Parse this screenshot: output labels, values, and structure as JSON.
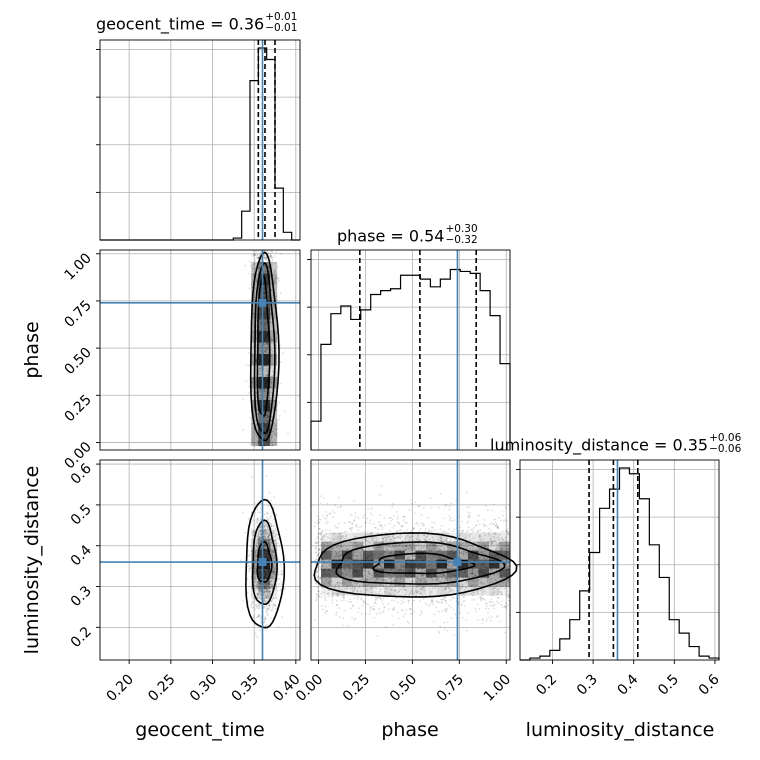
{
  "chart_data": {
    "type": "corner",
    "parameters": [
      "geocent_time",
      "phase",
      "luminosity_distance"
    ],
    "truths": {
      "geocent_time": 0.36,
      "phase": 0.74,
      "luminosity_distance": 0.36
    },
    "titles": [
      {
        "param": "geocent_time",
        "text": "geocent_time = 0.36",
        "plus": "+0.01",
        "minus": "−0.01"
      },
      {
        "param": "phase",
        "text": "phase = 0.54",
        "plus": "+0.30",
        "minus": "−0.32"
      },
      {
        "param": "luminosity_distance",
        "text": "luminosity_distance = 0.35",
        "plus": "+0.06",
        "minus": "−0.06"
      }
    ],
    "ranges": {
      "geocent_time": [
        0.165,
        0.405
      ],
      "phase": [
        -0.04,
        1.02
      ],
      "luminosity_distance": [
        0.12,
        0.61
      ]
    },
    "ticks": {
      "geocent_time": [
        "0.20",
        "0.25",
        "0.30",
        "0.35",
        "0.40"
      ],
      "phase": [
        "0.00",
        "0.25",
        "0.50",
        "0.75",
        "1.00"
      ],
      "luminosity_distance": [
        "0.2",
        "0.3",
        "0.4",
        "0.5",
        "0.6"
      ]
    },
    "axis_labels": {
      "geocent_time": "geocent_time",
      "phase": "phase",
      "luminosity_distance": "luminosity_distance"
    },
    "y_labels": {
      "phase": "phase",
      "luminosity_distance": "luminosity_distance"
    },
    "quantiles": {
      "geocent_time": [
        0.355,
        0.363,
        0.375
      ],
      "phase": [
        0.22,
        0.54,
        0.84
      ],
      "luminosity_distance": [
        0.29,
        0.35,
        0.41
      ]
    },
    "histograms": {
      "geocent_time": {
        "edges_start": 0.165,
        "edges_end": 0.405,
        "values": [
          0,
          0,
          0,
          0,
          0,
          0,
          0,
          0,
          0,
          0,
          0,
          0,
          0,
          0,
          0,
          0,
          0.01,
          0.15,
          0.83,
          1.0,
          0.94,
          0.27,
          0.04,
          0
        ]
      },
      "phase": {
        "edges_start": -0.04,
        "edges_end": 1.02,
        "values": [
          0.15,
          0.55,
          0.71,
          0.75,
          0.68,
          0.73,
          0.81,
          0.83,
          0.84,
          0.91,
          0.91,
          0.89,
          0.85,
          0.89,
          0.94,
          0.93,
          0.92,
          0.83,
          0.7,
          0.45
        ]
      },
      "luminosity_distance": {
        "edges_start": 0.12,
        "edges_end": 0.61,
        "values": [
          0,
          0.01,
          0.02,
          0.05,
          0.11,
          0.21,
          0.36,
          0.56,
          0.79,
          0.89,
          1.0,
          0.97,
          0.84,
          0.6,
          0.43,
          0.21,
          0.14,
          0.07,
          0.02,
          0.01
        ]
      }
    },
    "density_centers": {
      "geocent_time_phase": {
        "x": 0.362,
        "y_range": [
          0.05,
          0.97
        ]
      },
      "geocent_time_luminosity_distance": {
        "x": 0.362,
        "y": 0.355
      },
      "phase_luminosity_distance": {
        "x_range": [
          0.03,
          0.95
        ],
        "y": 0.355
      }
    },
    "grid": true
  }
}
